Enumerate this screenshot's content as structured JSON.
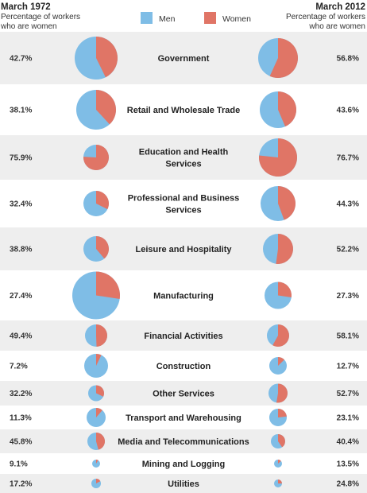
{
  "header": {
    "left_title": "March 1972",
    "left_sub_line1": "Percentage of workers",
    "left_sub_line2": "who are women",
    "right_title": "March  2012",
    "right_sub_line1": "Percentage of workers",
    "right_sub_line2": "who are women"
  },
  "legend": [
    {
      "label": "Men",
      "color": "#7fbde6"
    },
    {
      "label": "Women",
      "color": "#e07566"
    }
  ],
  "colors": {
    "men": "#7fbde6",
    "women": "#e07566",
    "band": "#eeeeee"
  },
  "chart_data": {
    "type": "pie",
    "series": [
      {
        "name": "March 1972",
        "values": [
          42.7,
          38.1,
          75.9,
          32.4,
          38.8,
          27.4,
          49.4,
          7.2,
          32.2,
          11.3,
          45.8,
          9.1,
          17.2
        ]
      },
      {
        "name": "March  2012",
        "values": [
          56.8,
          43.6,
          76.7,
          44.3,
          52.2,
          27.3,
          58.1,
          12.7,
          52.7,
          23.1,
          40.4,
          13.5,
          24.8
        ]
      }
    ],
    "labels_1972": [
      "42.7%",
      "38.1%",
      "75.9%",
      "32.4%",
      "38.8%",
      "27.4%",
      "49.4%",
      "7.2%",
      "32.2%",
      "11.3%",
      "45.8%",
      "9.1%",
      "17.2%"
    ],
    "labels_2012": [
      "56.8%",
      "43.6%",
      "76.7%",
      "44.3%",
      "52.2%",
      "27.3%",
      "58.1%",
      "12.7%",
      "52.7%",
      "23.1%",
      "40.4%",
      "13.5%",
      "24.8%"
    ],
    "rows": [
      {
        "category": [
          "Government"
        ],
        "women_1972": 42.7,
        "women_2012": 56.8
      },
      {
        "category": [
          "Retail and Wholesale Trade"
        ],
        "women_1972": 38.1,
        "women_2012": 43.6
      },
      {
        "category": [
          "Education and Health",
          "Services"
        ],
        "women_1972": 75.9,
        "women_2012": 76.7
      },
      {
        "category": [
          "Professional and Business",
          "Services"
        ],
        "women_1972": 32.4,
        "women_2012": 44.3
      },
      {
        "category": [
          "Leisure and Hospitality"
        ],
        "women_1972": 38.8,
        "women_2012": 52.2
      },
      {
        "category": [
          "Manufacturing"
        ],
        "women_1972": 27.4,
        "women_2012": 27.3
      },
      {
        "category": [
          "Financial Activities"
        ],
        "women_1972": 49.4,
        "women_2012": 58.1
      },
      {
        "category": [
          "Construction"
        ],
        "women_1972": 7.2,
        "women_2012": 12.7
      },
      {
        "category": [
          "Other Services"
        ],
        "women_1972": 32.2,
        "women_2012": 52.7
      },
      {
        "category": [
          "Transport and Warehousing"
        ],
        "women_1972": 11.3,
        "women_2012": 23.1
      },
      {
        "category": [
          "Media and Telecommunications"
        ],
        "women_1972": 45.8,
        "women_2012": 40.4
      },
      {
        "category": [
          "Mining and Logging"
        ],
        "women_1972": 9.1,
        "women_2012": 13.5
      },
      {
        "category": [
          "Utilities"
        ],
        "women_1972": 17.2,
        "women_2012": 24.8
      }
    ]
  }
}
